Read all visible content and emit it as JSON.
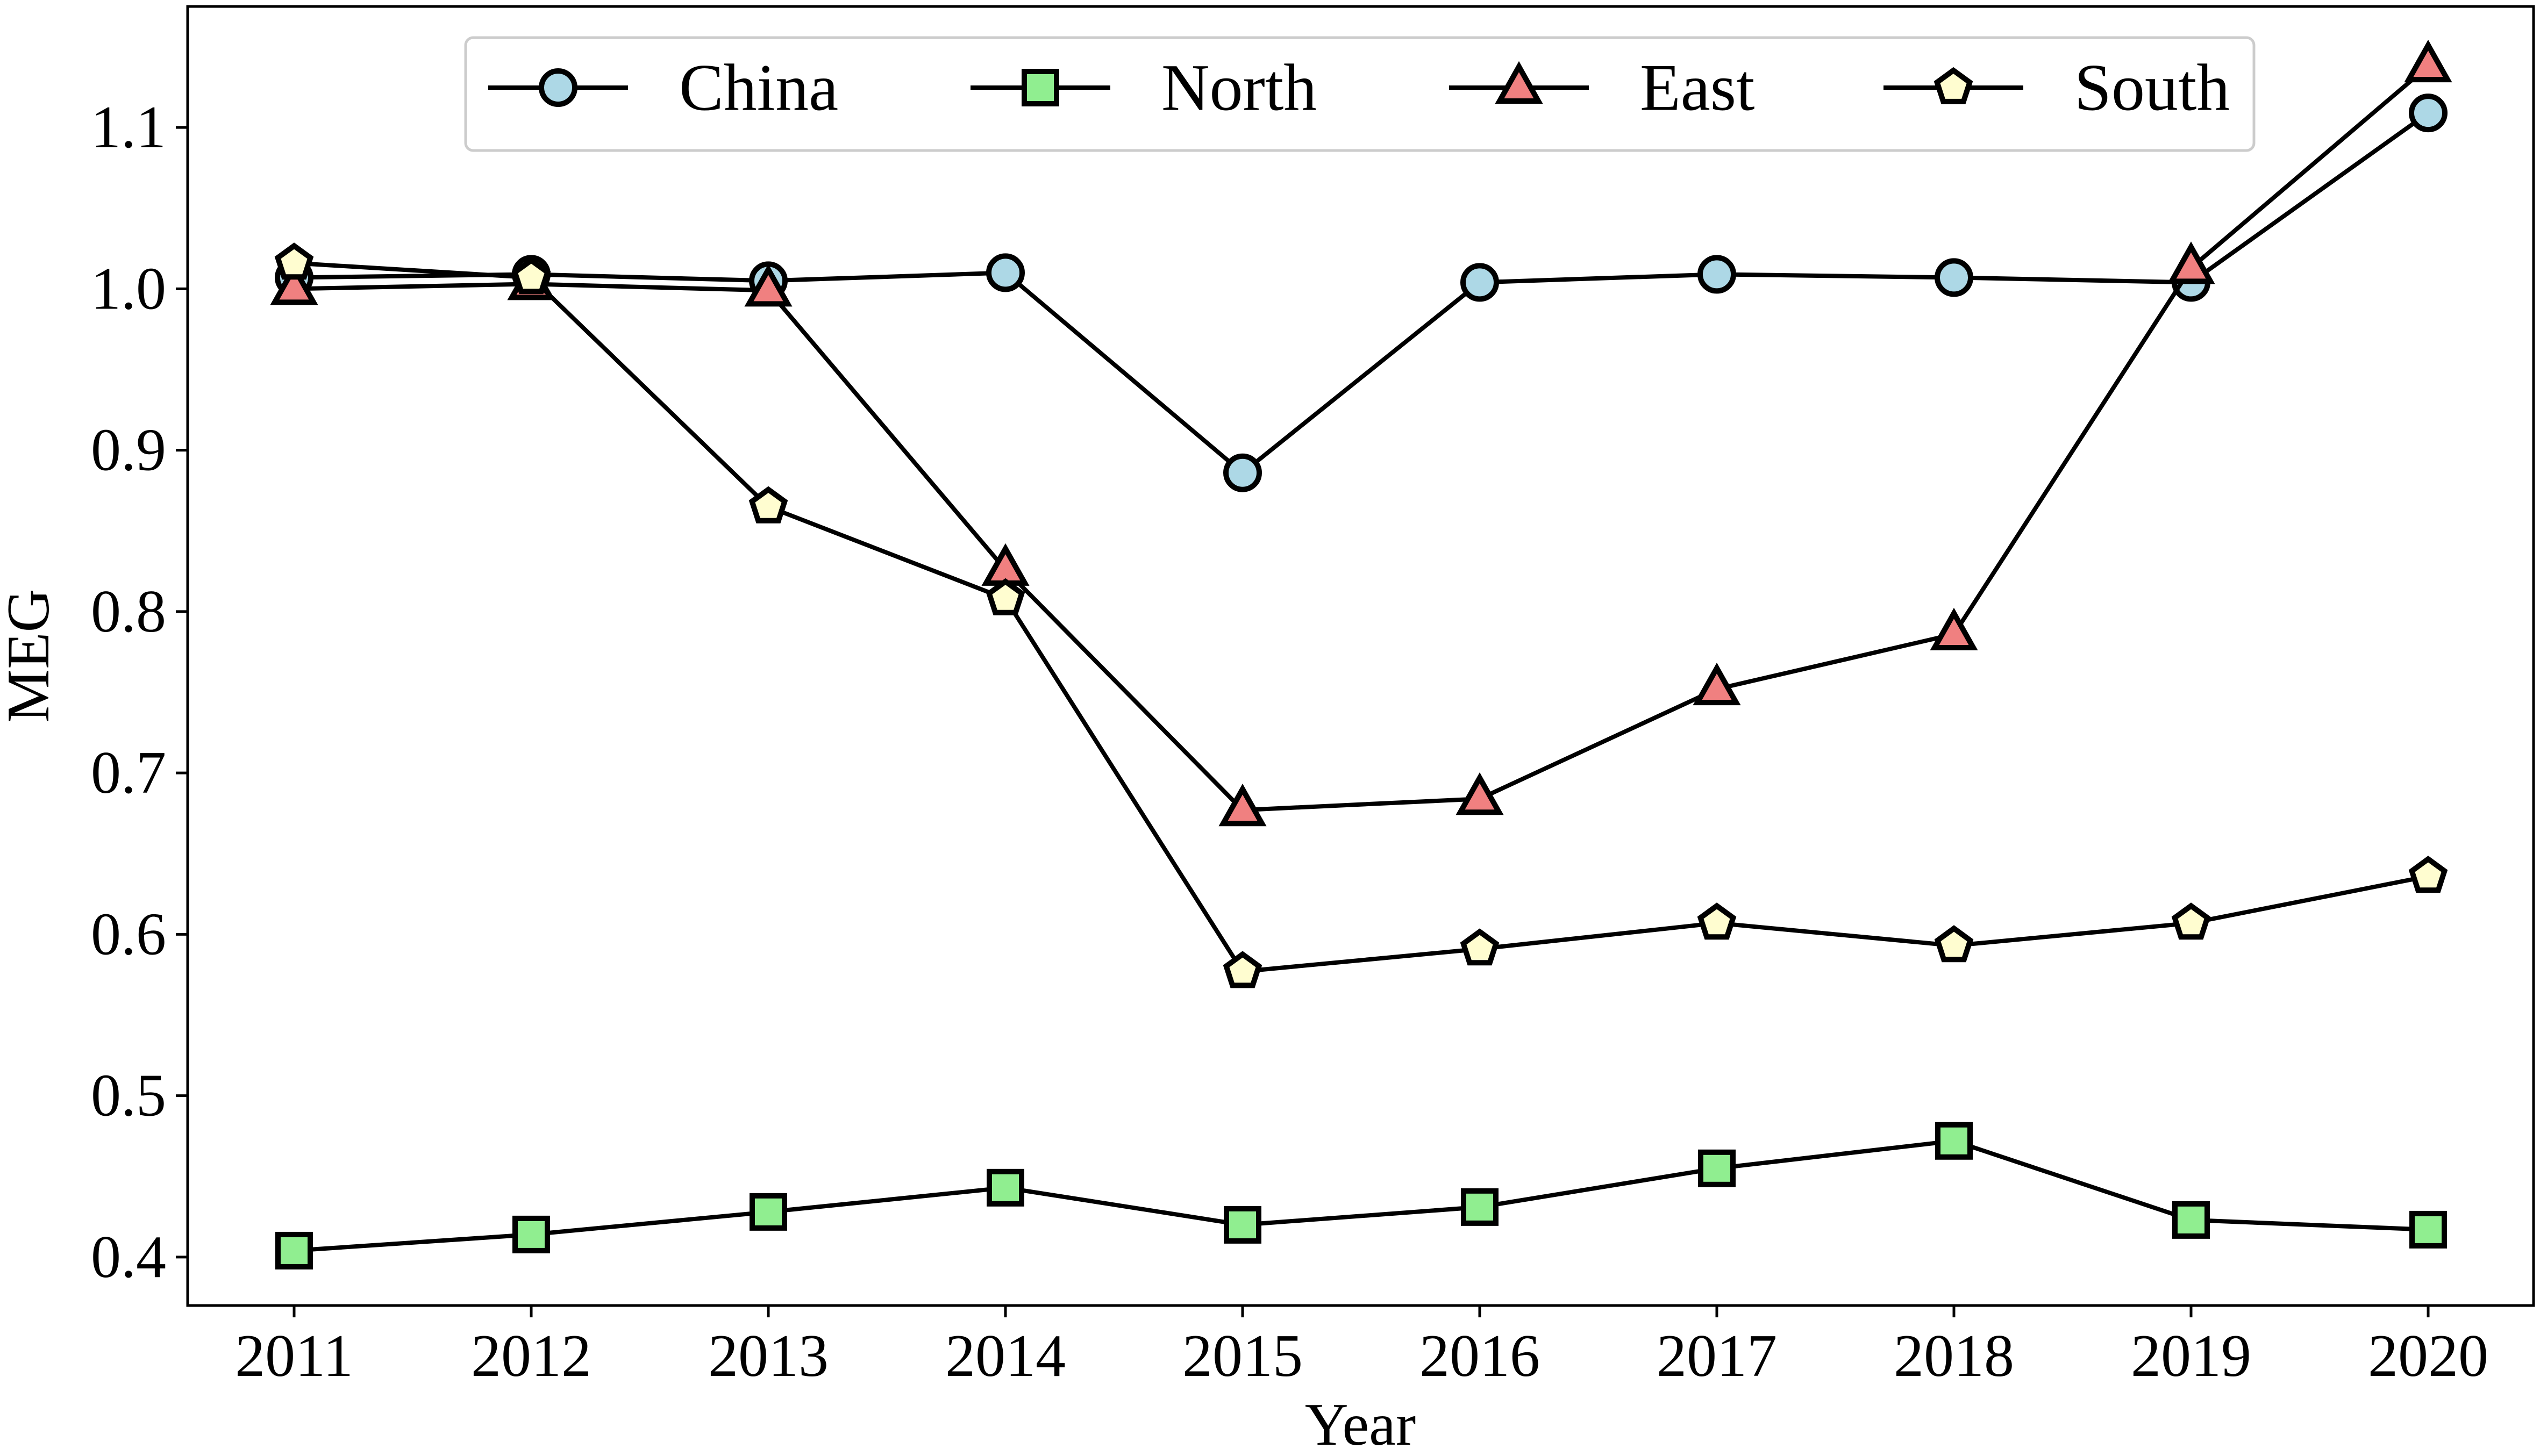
{
  "chart_data": {
    "type": "line",
    "title": "",
    "xlabel": "Year",
    "ylabel": "MEG",
    "x": [
      "2011",
      "2012",
      "2013",
      "2014",
      "2015",
      "2016",
      "2017",
      "2018",
      "2019",
      "2020"
    ],
    "ylim": [
      0.37,
      1.175
    ],
    "yticks": [
      0.4,
      0.5,
      0.6,
      0.7,
      0.8,
      0.9,
      1.0,
      1.1
    ],
    "ytick_labels": [
      "0.4",
      "0.5",
      "0.6",
      "0.7",
      "0.8",
      "0.9",
      "1.0",
      "1.1"
    ],
    "grid": false,
    "legend_position": "top-center",
    "line_color": "#000000",
    "series": [
      {
        "name": "China",
        "marker": "circle",
        "color": "#add8e6",
        "values": [
          1.007,
          1.009,
          1.005,
          1.01,
          0.886,
          1.004,
          1.009,
          1.007,
          1.004,
          1.109
        ]
      },
      {
        "name": "North",
        "marker": "square",
        "color": "#90ee90",
        "values": [
          0.404,
          0.414,
          0.428,
          0.443,
          0.42,
          0.431,
          0.455,
          0.472,
          0.423,
          0.417
        ]
      },
      {
        "name": "East",
        "marker": "triangle",
        "color": "#f08080",
        "values": [
          1.0,
          1.003,
          0.999,
          0.826,
          0.677,
          0.684,
          0.752,
          0.786,
          1.013,
          1.138
        ]
      },
      {
        "name": "South",
        "marker": "pentagon",
        "color": "#fffdd0",
        "values": [
          1.016,
          1.007,
          0.865,
          0.808,
          0.577,
          0.591,
          0.607,
          0.593,
          0.607,
          0.636
        ]
      }
    ]
  }
}
